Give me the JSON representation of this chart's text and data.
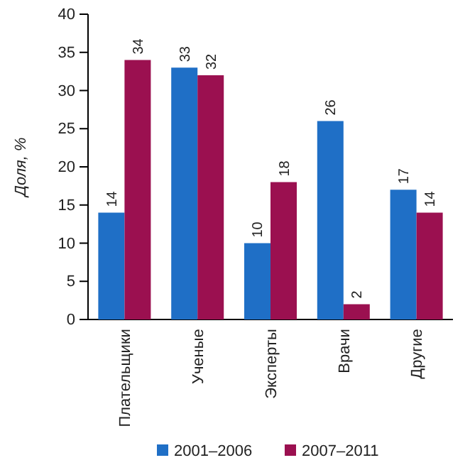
{
  "chart_data": {
    "type": "bar",
    "ylabel": "Доля, %",
    "categories": [
      "Плательщики",
      "Ученые",
      "Эксперты",
      "Врачи",
      "Другие"
    ],
    "series": [
      {
        "name": "2001–2006",
        "color": "#1f6fc6",
        "values": [
          14,
          33,
          10,
          26,
          17
        ]
      },
      {
        "name": "2007–2011",
        "color": "#9b1050",
        "values": [
          34,
          32,
          18,
          2,
          14
        ]
      }
    ],
    "ylim": [
      0,
      40
    ],
    "yticks": [
      0,
      5,
      10,
      15,
      20,
      25,
      30,
      35,
      40
    ],
    "data_labels": true,
    "legend": "bottom",
    "grid": false
  }
}
